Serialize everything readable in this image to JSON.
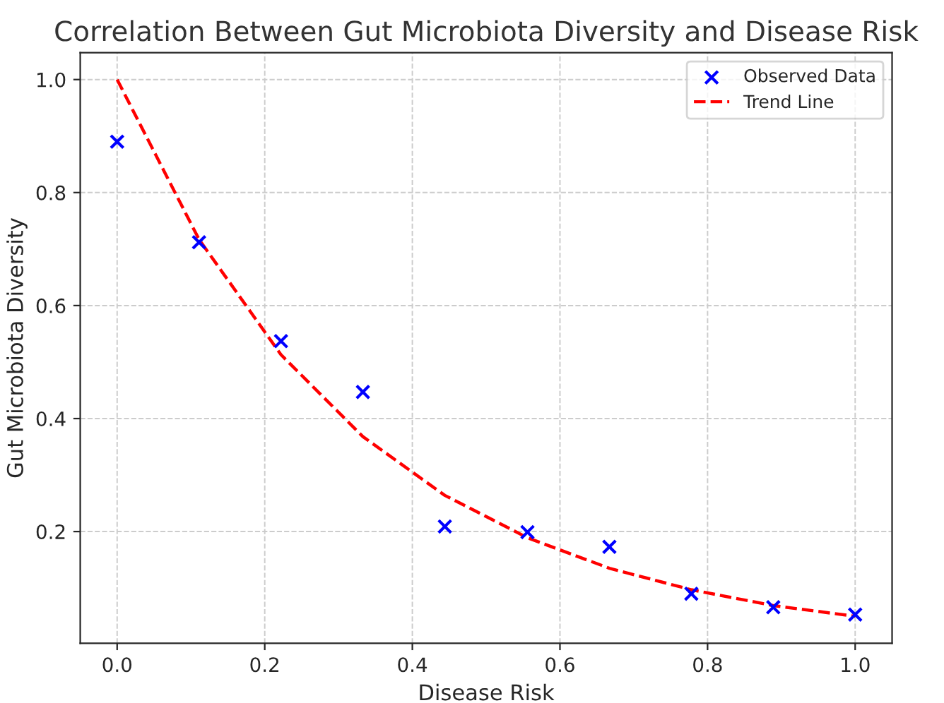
{
  "chart_data": {
    "type": "scatter",
    "title": "Correlation Between Gut Microbiota Diversity and Disease Risk",
    "xlabel": "Disease Risk",
    "ylabel": "Gut Microbiota Diversity",
    "series": [
      {
        "name": "Observed Data",
        "color": "#0000ff",
        "marker": "cross",
        "x": [
          0.0,
          0.111,
          0.222,
          0.333,
          0.444,
          0.556,
          0.667,
          0.778,
          0.889,
          1.0
        ],
        "values": [
          0.89,
          0.712,
          0.537,
          0.447,
          0.209,
          0.199,
          0.173,
          0.09,
          0.066,
          0.053
        ]
      },
      {
        "name": "Trend Line",
        "type": "line",
        "color": "#ff0000",
        "line_style": "dashed",
        "marker": "none",
        "x": [
          0.0,
          0.111,
          0.222,
          0.333,
          0.444,
          0.556,
          0.667,
          0.778,
          0.889,
          1.0
        ],
        "values": [
          1.0,
          0.717,
          0.513,
          0.368,
          0.264,
          0.189,
          0.135,
          0.097,
          0.069,
          0.05
        ]
      }
    ],
    "xlim": [
      -0.05,
      1.05
    ],
    "ylim": [
      0.0023,
      1.0475
    ],
    "xticks": [
      {
        "value": 0,
        "label": "0.0"
      },
      0.2,
      0.4,
      0.6,
      0.8,
      {
        "value": 1,
        "label": "1.0"
      }
    ],
    "yticks": [
      0.2,
      0.4,
      0.6,
      0.8,
      {
        "value": 1,
        "label": "1.0"
      }
    ],
    "grid": true,
    "legend": "top right"
  }
}
